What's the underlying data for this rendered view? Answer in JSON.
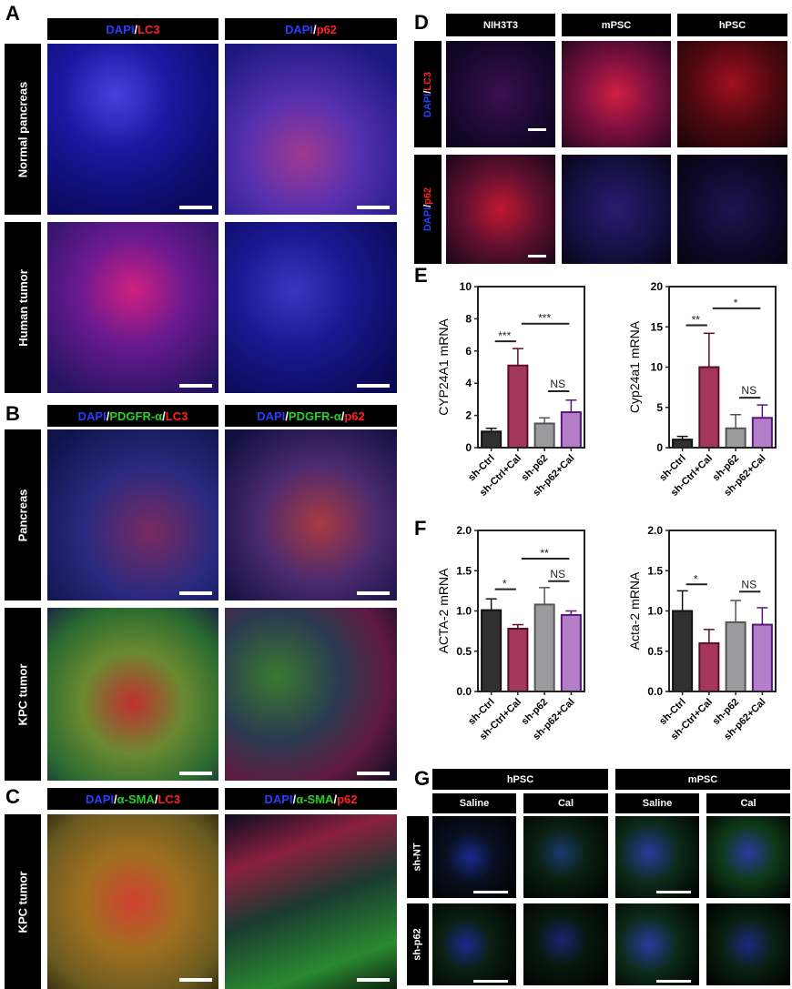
{
  "panels": {
    "A": "A",
    "B": "B",
    "C": "C",
    "D": "D",
    "E": "E",
    "F": "F",
    "G": "G"
  },
  "panelA": {
    "headers": [
      [
        {
          "t": "DAPI",
          "c": "blue"
        },
        {
          "t": "/",
          "c": "white"
        },
        {
          "t": "LC3",
          "c": "red"
        }
      ],
      [
        {
          "t": "DAPI",
          "c": "blue"
        },
        {
          "t": "/",
          "c": "white"
        },
        {
          "t": "p62",
          "c": "red"
        }
      ]
    ],
    "rows": [
      "Normal pancreas",
      "Human tumor"
    ]
  },
  "panelB": {
    "headers": [
      [
        {
          "t": "DAPI",
          "c": "blue"
        },
        {
          "t": "/",
          "c": "white"
        },
        {
          "t": "PDGFR-α",
          "c": "green"
        },
        {
          "t": "/",
          "c": "white"
        },
        {
          "t": "LC3",
          "c": "red"
        }
      ],
      [
        {
          "t": "DAPI",
          "c": "blue"
        },
        {
          "t": "/",
          "c": "white"
        },
        {
          "t": "PDGFR-α",
          "c": "green"
        },
        {
          "t": "/",
          "c": "white"
        },
        {
          "t": "p62",
          "c": "red"
        }
      ]
    ],
    "rows": [
      "Pancreas",
      "KPC tumor"
    ]
  },
  "panelC": {
    "headers": [
      [
        {
          "t": "DAPI",
          "c": "blue"
        },
        {
          "t": "/",
          "c": "white"
        },
        {
          "t": "α-SMA",
          "c": "green"
        },
        {
          "t": "/",
          "c": "white"
        },
        {
          "t": "LC3",
          "c": "red"
        }
      ],
      [
        {
          "t": "DAPI",
          "c": "blue"
        },
        {
          "t": "/",
          "c": "white"
        },
        {
          "t": "α-SMA",
          "c": "green"
        },
        {
          "t": "/",
          "c": "white"
        },
        {
          "t": "p62",
          "c": "red"
        }
      ]
    ],
    "rows": [
      "KPC tumor"
    ]
  },
  "panelD": {
    "headers": [
      "NIH3T3",
      "mPSC",
      "hPSC"
    ],
    "rows": [
      [
        {
          "t": "DAPI",
          "c": "blue"
        },
        {
          "t": "/",
          "c": "white"
        },
        {
          "t": "LC3",
          "c": "red"
        }
      ],
      [
        {
          "t": "DAPI",
          "c": "blue"
        },
        {
          "t": "/",
          "c": "white"
        },
        {
          "t": "p62",
          "c": "red"
        }
      ]
    ]
  },
  "panelG": {
    "groups": [
      "hPSC",
      "mPSC"
    ],
    "conditions": [
      "Saline",
      "Cal",
      "Saline",
      "Cal"
    ],
    "rows": [
      "sh-NT",
      "sh-p62"
    ]
  },
  "colors": {
    "sh-Ctrl": "#303030",
    "sh-Ctrl+Cal": "#a3365a",
    "sh-p62": "#9b9b9d",
    "sh-p62+Cal": "#b47ec8"
  },
  "chart_data": [
    {
      "type": "bar",
      "panel": "E",
      "ylabel": "CYP24A1 mRNA",
      "ylim": [
        0,
        10
      ],
      "yticks": [
        "0",
        "2",
        "4",
        "6",
        "8",
        "10"
      ],
      "categories": [
        "sh-Ctrl",
        "sh-Ctrl+Cal",
        "sh-p62",
        "sh-p62+Cal"
      ],
      "values": [
        1.0,
        5.1,
        1.5,
        2.2
      ],
      "errors": [
        0.2,
        1.05,
        0.35,
        0.75
      ],
      "significance": [
        {
          "from": 0,
          "to": 1,
          "y": 6.6,
          "label": "***"
        },
        {
          "from": 1,
          "to": 3,
          "y": 7.7,
          "label": "***"
        },
        {
          "from": 2,
          "to": 3,
          "y": 3.5,
          "label": "NS"
        }
      ]
    },
    {
      "type": "bar",
      "panel": "E",
      "ylabel": "Cyp24a1 mRNA",
      "ylim": [
        0,
        20
      ],
      "yticks": [
        "0",
        "5",
        "10",
        "15",
        "20"
      ],
      "categories": [
        "sh-Ctrl",
        "sh-Ctrl+Cal",
        "sh-p62",
        "sh-p62+Cal"
      ],
      "values": [
        1.0,
        10.0,
        2.4,
        3.7
      ],
      "errors": [
        0.4,
        4.2,
        1.7,
        1.6
      ],
      "significance": [
        {
          "from": 0,
          "to": 1,
          "y": 15.2,
          "label": "**"
        },
        {
          "from": 1,
          "to": 3,
          "y": 17.3,
          "label": "*"
        },
        {
          "from": 2,
          "to": 3,
          "y": 6.2,
          "label": "NS"
        }
      ]
    },
    {
      "type": "bar",
      "panel": "F",
      "ylabel": "ACTA-2 mRNA",
      "ylim": [
        0,
        2
      ],
      "yticks": [
        "0.0",
        "0.5",
        "1.0",
        "1.5",
        "2.0"
      ],
      "categories": [
        "sh-Ctrl",
        "sh-Ctrl+Cal",
        "sh-p62",
        "sh-p62+Cal"
      ],
      "values": [
        1.01,
        0.78,
        1.08,
        0.95
      ],
      "errors": [
        0.14,
        0.05,
        0.21,
        0.05
      ],
      "significance": [
        {
          "from": 0,
          "to": 1,
          "y": 1.27,
          "label": "*"
        },
        {
          "from": 1,
          "to": 3,
          "y": 1.65,
          "label": "**"
        },
        {
          "from": 2,
          "to": 3,
          "y": 1.37,
          "label": "NS"
        }
      ]
    },
    {
      "type": "bar",
      "panel": "F",
      "ylabel": "Acta-2 mRNA",
      "ylim": [
        0,
        2
      ],
      "yticks": [
        "0.0",
        "0.5",
        "1.0",
        "1.5",
        "2.0"
      ],
      "categories": [
        "sh-Ctrl",
        "sh-Ctrl+Cal",
        "sh-p62",
        "sh-p62+Cal"
      ],
      "values": [
        1.0,
        0.6,
        0.86,
        0.83
      ],
      "errors": [
        0.25,
        0.17,
        0.27,
        0.21
      ],
      "significance": [
        {
          "from": 0,
          "to": 1,
          "y": 1.33,
          "label": "*"
        },
        {
          "from": 2,
          "to": 3,
          "y": 1.24,
          "label": "NS"
        }
      ]
    }
  ]
}
